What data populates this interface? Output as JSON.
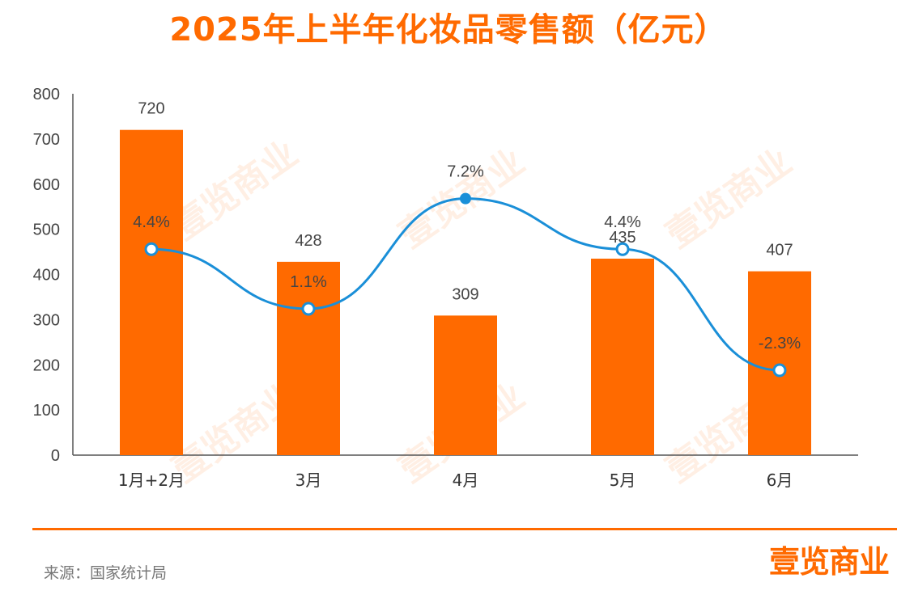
{
  "source": "来源：国家统计局",
  "brand": "壹览商业",
  "watermark": "壹览商业",
  "colors": {
    "bar": "#ff6a00",
    "line": "#1a8fd8",
    "axis_text": "#444444",
    "title": "#ff6a00"
  },
  "chart_data": {
    "type": "bar",
    "title": "2025年上半年化妆品零售额（亿元）",
    "categories": [
      "1月+2月",
      "3月",
      "4月",
      "5月",
      "6月"
    ],
    "ylim": [
      0,
      800
    ],
    "yticks": [
      0,
      100,
      200,
      300,
      400,
      500,
      600,
      700,
      800
    ],
    "grid": false,
    "series": [
      {
        "values": [
          720,
          428,
          309,
          435,
          407
        ],
        "labels": [
          "720",
          "428",
          "309",
          "435",
          "407"
        ]
      }
    ],
    "line_series": {
      "type": "line",
      "values": [
        4.4,
        1.1,
        7.2,
        4.4,
        -2.3
      ],
      "labels": [
        "4.4%",
        "1.1%",
        "7.2%",
        "4.4%",
        "-2.3%"
      ]
    }
  }
}
